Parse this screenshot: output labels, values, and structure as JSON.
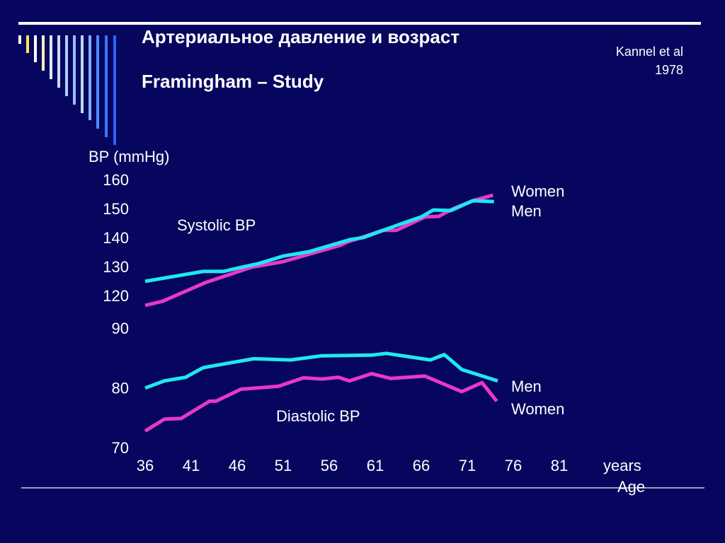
{
  "header": {
    "title": "Артериальное давление и возраст",
    "subtitle": "Framingham – Study",
    "source": [
      "Kannel et al",
      "1978"
    ]
  },
  "chart_data": [
    {
      "type": "line",
      "title": "Systolic BP",
      "y_label": "BP (mmHg)",
      "xlim": [
        36,
        81
      ],
      "ylim": [
        115,
        162
      ],
      "yticks": [
        120,
        130,
        140,
        150,
        160
      ],
      "series": [
        {
          "name": "Women",
          "color": "#e838c8",
          "x": [
            36,
            37.9,
            42.5,
            47.5,
            51,
            57.2,
            58,
            59.5,
            61.8,
            63.3,
            66.4,
            67.9,
            69.5,
            71.8,
            73.8
          ],
          "values": [
            117.1,
            118.5,
            124.9,
            130.2,
            132.2,
            137.8,
            139,
            140.5,
            143,
            143,
            147.6,
            147.8,
            150.5,
            153.4,
            155.1
          ]
        },
        {
          "name": "Men",
          "color": "#20e8f0",
          "x": [
            36,
            42.3,
            44.5,
            46.4,
            48.3,
            51,
            53.8,
            58.3,
            59.7,
            63.7,
            66,
            67.3,
            69.2,
            71.6,
            73.9
          ],
          "values": [
            125.4,
            128.8,
            128.8,
            130.2,
            131.5,
            134.1,
            135.6,
            139.8,
            140.5,
            145.1,
            147.6,
            150,
            149.8,
            153.2,
            152.9
          ]
        }
      ]
    },
    {
      "type": "line",
      "title": "Diastolic BP",
      "x_label": "years",
      "x_axis_title": "Age",
      "xlim": [
        36,
        81
      ],
      "xticks": [
        36,
        41,
        46,
        51,
        56,
        61,
        66,
        71,
        76,
        81
      ],
      "ylim": [
        70,
        90
      ],
      "yticks": [
        70,
        80,
        90
      ],
      "series": [
        {
          "name": "Men",
          "color": "#20e8f0",
          "x": [
            36,
            38.1,
            40.4,
            42.3,
            44.8,
            47.8,
            51.8,
            55.2,
            60.6,
            62.2,
            67,
            68.5,
            70.4,
            74.3
          ],
          "values": [
            80.2,
            81.4,
            82,
            83.6,
            84.3,
            85.1,
            84.9,
            85.6,
            85.7,
            86,
            84.9,
            85.8,
            83.3,
            81.4
          ]
        },
        {
          "name": "Women",
          "color": "#e838c8",
          "x": [
            36,
            38.1,
            39.9,
            43,
            43.7,
            46.4,
            50.5,
            53.2,
            55.2,
            57,
            58.2,
            60.6,
            62.7,
            66.4,
            70.4,
            72.6,
            74.2
          ],
          "values": [
            73,
            75,
            75.1,
            78,
            78,
            80,
            80.5,
            81.9,
            81.7,
            82,
            81.4,
            82.6,
            81.8,
            82.2,
            79.6,
            81.1,
            78
          ]
        }
      ]
    }
  ]
}
